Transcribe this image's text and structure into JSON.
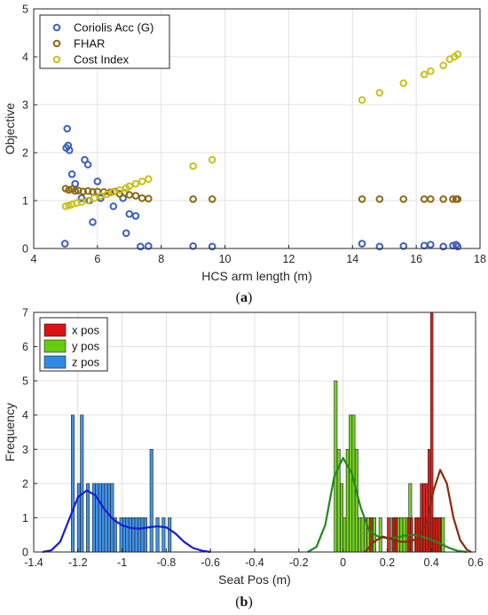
{
  "captions": {
    "a_open": "(",
    "a_letter": "a",
    "a_close": ")",
    "b_open": "(",
    "b_letter": "b",
    "b_close": ")"
  },
  "chart_data": [
    {
      "type": "scatter",
      "xlabel": "HCS arm length (m)",
      "ylabel": "Objective",
      "xlim": [
        4,
        18
      ],
      "ylim": [
        0,
        5
      ],
      "xticks": [
        4,
        6,
        8,
        10,
        12,
        14,
        16,
        18
      ],
      "yticks": [
        0,
        1,
        2,
        3,
        4,
        5
      ],
      "grid": true,
      "legend_position": "top-left",
      "series": [
        {
          "name": "Coriolis Acc (G)",
          "color": "#3d5fbf",
          "x": [
            4.98,
            5.02,
            5.05,
            5.08,
            5.12,
            5.2,
            5.3,
            5.5,
            5.6,
            5.7,
            5.75,
            5.85,
            6.0,
            6.1,
            6.5,
            6.8,
            6.9,
            7.0,
            7.2,
            7.35,
            7.6,
            9.0,
            9.6,
            14.3,
            14.85,
            15.6,
            16.25,
            16.45,
            16.85,
            17.15,
            17.25,
            17.3
          ],
          "y": [
            0.1,
            2.1,
            2.5,
            2.15,
            2.05,
            1.55,
            1.35,
            1.05,
            1.85,
            1.75,
            1.0,
            0.55,
            1.4,
            1.05,
            0.88,
            1.05,
            0.32,
            0.72,
            0.68,
            0.04,
            0.05,
            0.05,
            0.04,
            0.1,
            0.04,
            0.05,
            0.06,
            0.08,
            0.04,
            0.06,
            0.08,
            0.04
          ]
        },
        {
          "name": "FHAR",
          "color": "#8a6a16",
          "x": [
            5.0,
            5.1,
            5.2,
            5.3,
            5.4,
            5.55,
            5.7,
            5.85,
            6.0,
            6.2,
            6.4,
            6.55,
            6.7,
            6.85,
            7.0,
            7.2,
            7.4,
            7.6,
            9.0,
            9.6,
            14.3,
            14.85,
            15.6,
            16.25,
            16.45,
            16.85,
            17.15,
            17.25,
            17.3
          ],
          "y": [
            1.25,
            1.22,
            1.24,
            1.2,
            1.21,
            1.19,
            1.2,
            1.18,
            1.19,
            1.18,
            1.17,
            1.19,
            1.14,
            1.16,
            1.12,
            1.1,
            1.05,
            1.04,
            1.03,
            1.03,
            1.03,
            1.03,
            1.03,
            1.03,
            1.03,
            1.03,
            1.03,
            1.03,
            1.03
          ]
        },
        {
          "name": "Cost Index",
          "color": "#c9c21a",
          "x": [
            5.0,
            5.1,
            5.2,
            5.35,
            5.5,
            5.7,
            5.9,
            6.1,
            6.3,
            6.5,
            6.7,
            6.9,
            7.0,
            7.2,
            7.4,
            7.6,
            9.0,
            9.6,
            14.3,
            14.85,
            15.6,
            16.25,
            16.45,
            16.85,
            17.05,
            17.2,
            17.3
          ],
          "y": [
            0.88,
            0.9,
            0.92,
            0.95,
            0.97,
            1.0,
            1.05,
            1.1,
            1.13,
            1.18,
            1.22,
            1.26,
            1.3,
            1.35,
            1.4,
            1.45,
            1.72,
            1.85,
            3.1,
            3.25,
            3.45,
            3.63,
            3.7,
            3.82,
            3.95,
            4.0,
            4.05
          ]
        }
      ]
    },
    {
      "type": "histogram",
      "xlabel": "Seat Pos (m)",
      "ylabel": "Frequency",
      "xlim": [
        -1.4,
        0.6
      ],
      "ylim": [
        0,
        7
      ],
      "xticks": [
        -1.4,
        -1.2,
        -1.0,
        -0.8,
        -0.6,
        -0.4,
        -0.2,
        0,
        0.2,
        0.4,
        0.6
      ],
      "xtick_labels": [
        "-1.4",
        "-1.2",
        "-1",
        "-0.8",
        "-0.6",
        "-0.4",
        "-0.2",
        "0",
        "0.2",
        "0.4",
        "0.6"
      ],
      "yticks": [
        0,
        1,
        2,
        3,
        4,
        5,
        6,
        7
      ],
      "grid": true,
      "legend_position": "top-left",
      "series": [
        {
          "name": "z pos",
          "color": "#2f8ae6",
          "curve_color": "#1a1ad6",
          "bin_start": -1.23,
          "bin_width": 0.0137,
          "counts": [
            4,
            0,
            2,
            4,
            0,
            2,
            0,
            2,
            2,
            2,
            2,
            2,
            2,
            2,
            1,
            0,
            1,
            1,
            1,
            1,
            1,
            1,
            1,
            1,
            1,
            0,
            3,
            0,
            1,
            0,
            1,
            0,
            1
          ],
          "kde_x": [
            -1.36,
            -1.32,
            -1.28,
            -1.24,
            -1.2,
            -1.16,
            -1.12,
            -1.08,
            -1.04,
            -1.0,
            -0.96,
            -0.92,
            -0.88,
            -0.84,
            -0.8,
            -0.76,
            -0.72,
            -0.68,
            -0.64,
            -0.6
          ],
          "kde_y": [
            0.0,
            0.05,
            0.3,
            0.95,
            1.6,
            1.8,
            1.65,
            1.25,
            0.95,
            0.78,
            0.7,
            0.68,
            0.72,
            0.75,
            0.72,
            0.55,
            0.3,
            0.12,
            0.04,
            0.0
          ]
        },
        {
          "name": "y pos",
          "color": "#66cc11",
          "curve_color": "#228822",
          "bin_start": -0.04,
          "bin_width": 0.0135,
          "counts": [
            5,
            3,
            2,
            1,
            3,
            4,
            4,
            3,
            1,
            1,
            1,
            1,
            1,
            1,
            0,
            1,
            0,
            0,
            0,
            1,
            1,
            1,
            1,
            1,
            1,
            2,
            0,
            1,
            1,
            1,
            1,
            1,
            1,
            1,
            1,
            1,
            1
          ],
          "kde_x": [
            -0.16,
            -0.12,
            -0.08,
            -0.04,
            0.0,
            0.04,
            0.08,
            0.12,
            0.16,
            0.2,
            0.24,
            0.28,
            0.32,
            0.36,
            0.4,
            0.44,
            0.48,
            0.52,
            0.56
          ],
          "kde_y": [
            0.0,
            0.15,
            0.8,
            2.2,
            2.75,
            2.3,
            1.3,
            0.6,
            0.45,
            0.4,
            0.42,
            0.48,
            0.5,
            0.45,
            0.35,
            0.25,
            0.12,
            0.03,
            0.0
          ]
        },
        {
          "name": "x pos",
          "color": "#dd1111",
          "curve_color": "#8a2a0a",
          "bin_start": 0.12,
          "bin_width": 0.0115,
          "counts": [
            1,
            0,
            0,
            0,
            0,
            0,
            0,
            1,
            0,
            1,
            1,
            0,
            0,
            0,
            0,
            1,
            1,
            0,
            1,
            1,
            2,
            2,
            2,
            3,
            7,
            1,
            1,
            1
          ],
          "kde_x": [
            0.1,
            0.14,
            0.18,
            0.22,
            0.26,
            0.3,
            0.34,
            0.38,
            0.41,
            0.44,
            0.47,
            0.5,
            0.53,
            0.56,
            0.58
          ],
          "kde_y": [
            0.0,
            0.3,
            0.45,
            0.38,
            0.3,
            0.3,
            0.4,
            0.9,
            1.8,
            2.4,
            2.0,
            1.0,
            0.35,
            0.07,
            0.0
          ]
        }
      ],
      "legend_order": [
        "x pos",
        "y pos",
        "z pos"
      ]
    }
  ]
}
